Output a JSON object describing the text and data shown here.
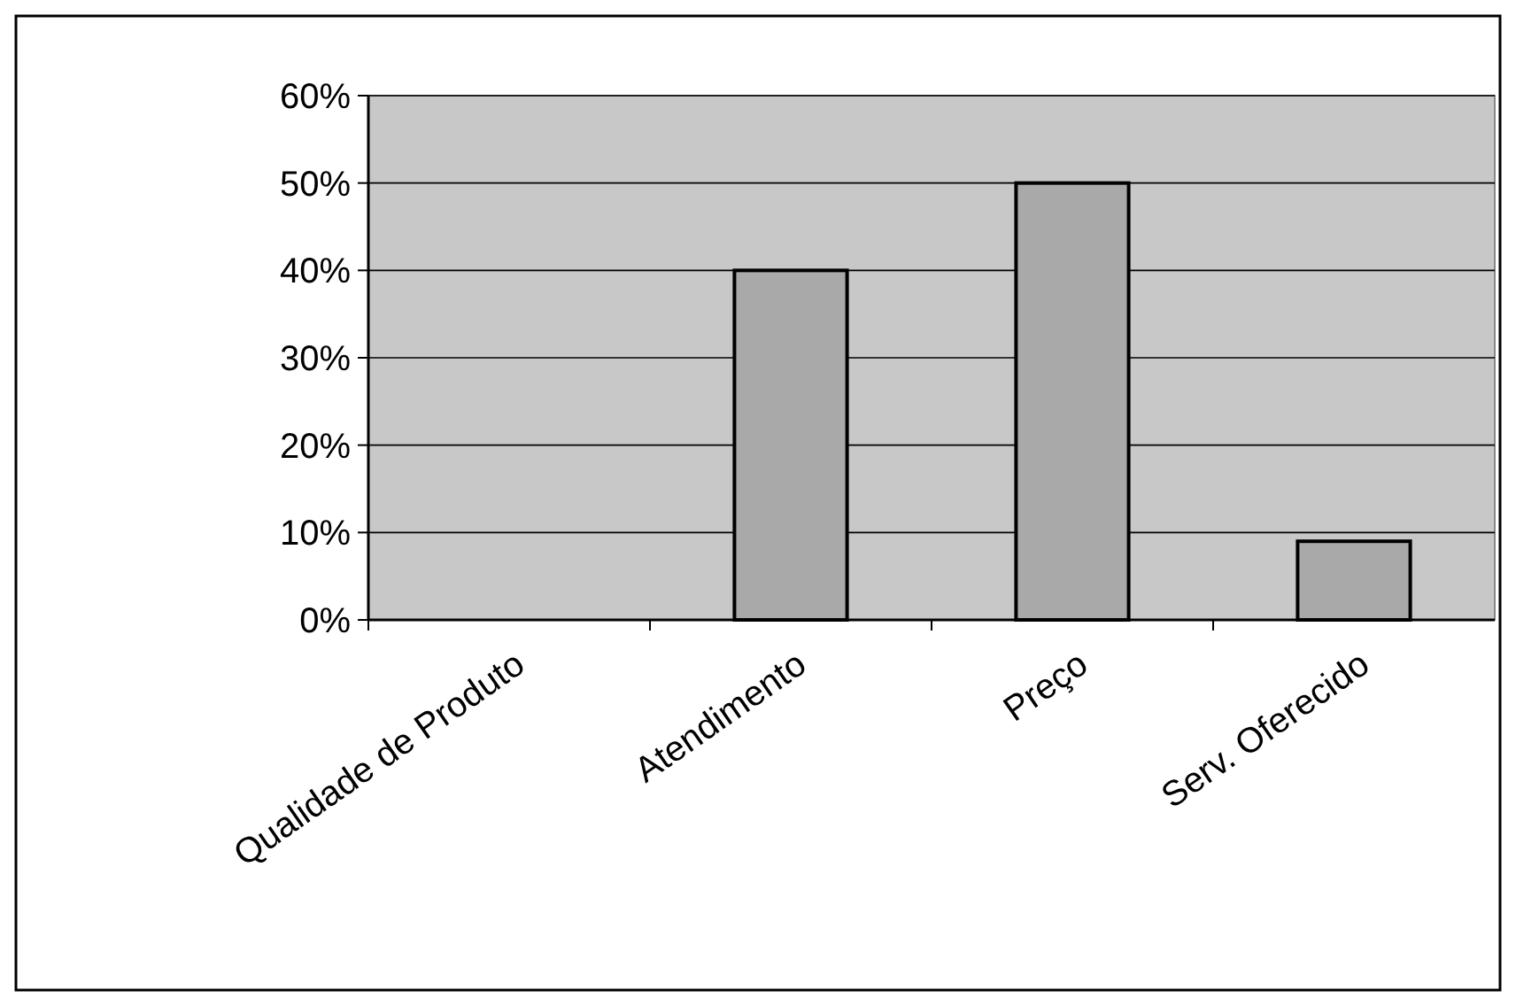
{
  "chart_data": {
    "type": "bar",
    "categories": [
      "Qualidade de Produto",
      "Atendimento",
      "Preço",
      "Serv. Oferecido"
    ],
    "values": [
      0,
      40,
      50,
      9
    ],
    "color": "#a9a9a9",
    "ylim": [
      0,
      60
    ],
    "yticks": [
      {
        "value": 0,
        "label": "0%"
      },
      {
        "value": 10,
        "label": "10%"
      },
      {
        "value": 20,
        "label": "20%"
      },
      {
        "value": 30,
        "label": "30%"
      },
      {
        "value": 40,
        "label": "40%"
      },
      {
        "value": 50,
        "label": "50%"
      },
      {
        "value": 60,
        "label": "60%"
      }
    ],
    "grid": "y"
  }
}
